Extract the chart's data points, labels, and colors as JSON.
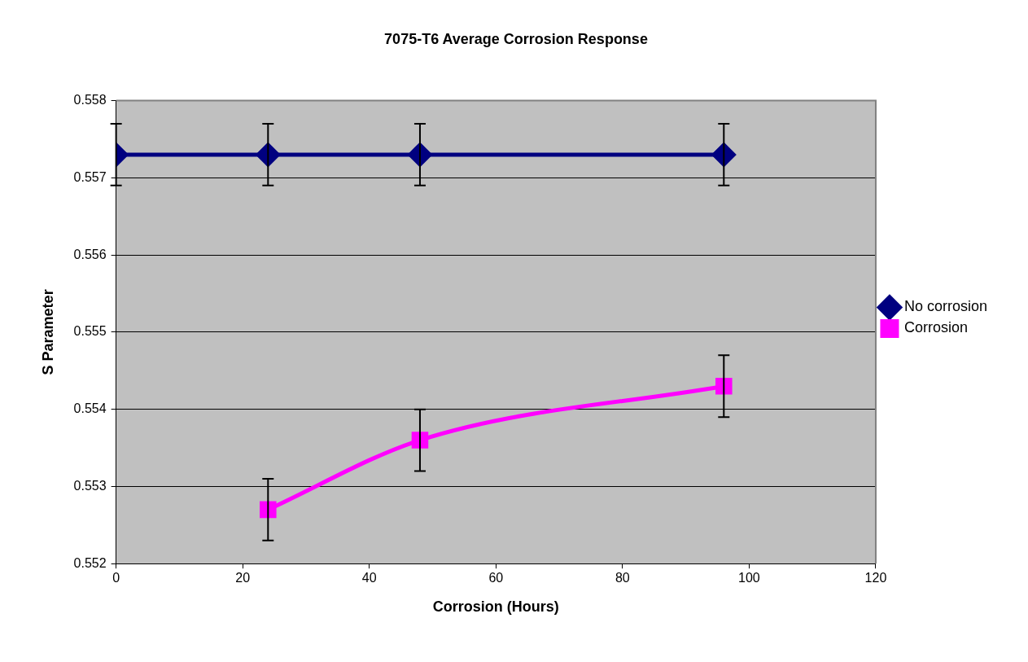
{
  "chart_data": {
    "type": "line",
    "title": "7075-T6 Average Corrosion Response",
    "xlabel": "Corrosion (Hours)",
    "ylabel": "S Parameter",
    "xlim": [
      0,
      120
    ],
    "xticks": [
      0,
      20,
      40,
      60,
      80,
      100,
      120
    ],
    "ylim": [
      0.552,
      0.558
    ],
    "yticks": [
      0.552,
      0.553,
      0.554,
      0.555,
      0.556,
      0.557,
      0.558
    ],
    "grid": "y",
    "legend": "right",
    "line_style": "solid",
    "series": [
      {
        "name": "No corrosion",
        "color": "#000080",
        "marker": "diamond",
        "x": [
          0,
          24,
          48,
          96
        ],
        "values": [
          0.5573,
          0.5573,
          0.5573,
          0.5573
        ],
        "errors": [
          0.0004,
          0.0004,
          0.0004,
          0.0004
        ]
      },
      {
        "name": "Corrosion",
        "color": "#ff00ff",
        "marker": "square",
        "x": [
          24,
          48,
          96
        ],
        "values": [
          0.5527,
          0.5536,
          0.5543
        ],
        "errors": [
          0.0004,
          0.0004,
          0.0004
        ]
      }
    ]
  }
}
